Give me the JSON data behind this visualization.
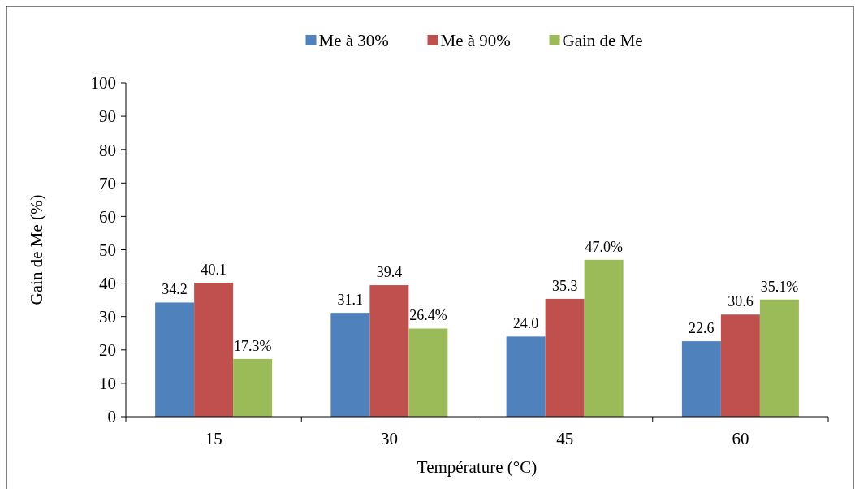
{
  "chart_data": {
    "type": "bar",
    "xlabel": "Température (°C)",
    "ylabel": "Gain de Me (%)",
    "categories": [
      "15",
      "30",
      "45",
      "60"
    ],
    "series": [
      {
        "name": "Me à 30%",
        "color": "#4f81bd",
        "values": [
          34.2,
          31.1,
          24.0,
          22.6
        ],
        "value_labels": [
          "34.2",
          "31.1",
          "24.0",
          "22.6"
        ]
      },
      {
        "name": "Me à 90%",
        "color": "#c0504d",
        "values": [
          40.1,
          39.4,
          35.3,
          30.6
        ],
        "value_labels": [
          "40.1",
          "39.4",
          "35.3",
          "30.6"
        ]
      },
      {
        "name": "Gain de Me",
        "color": "#9bbb59",
        "values": [
          17.3,
          26.4,
          47.0,
          35.1
        ],
        "value_labels": [
          "17.3%",
          "26.4%",
          "47.0%",
          "35.1%"
        ]
      }
    ],
    "ylim": [
      0,
      100
    ],
    "yticks": [
      0,
      10,
      20,
      30,
      40,
      50,
      60,
      70,
      80,
      90,
      100
    ],
    "grid": false,
    "legend": "top"
  }
}
